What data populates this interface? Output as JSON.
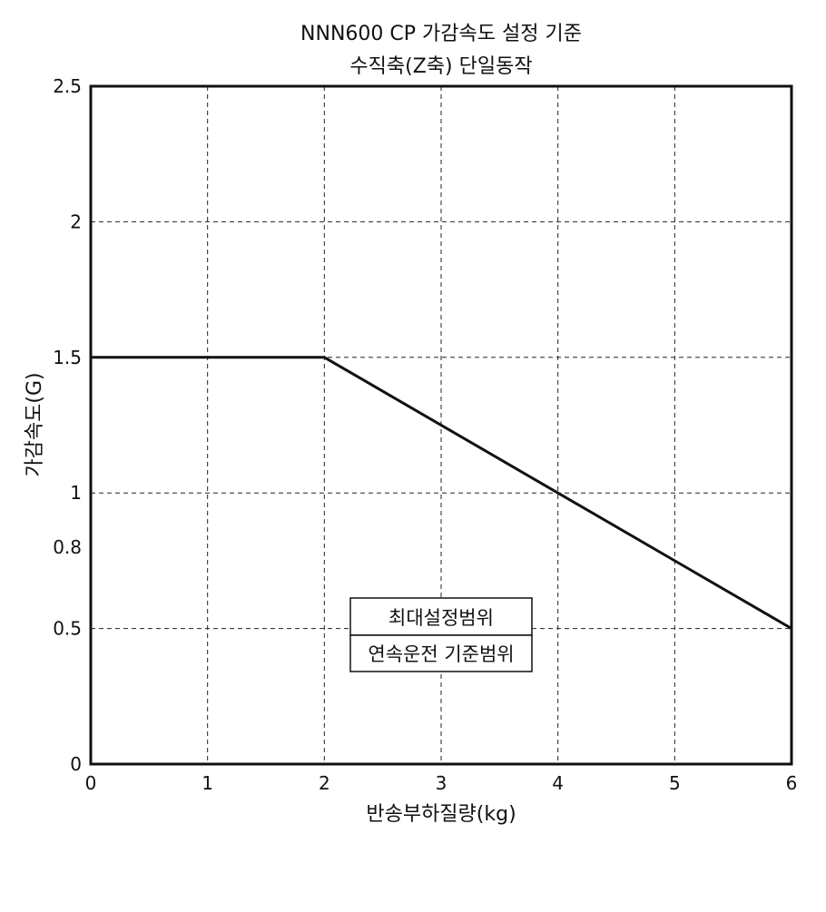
{
  "chart_data": {
    "type": "line",
    "title": "NNN600 CP 가감속도 설정 기준",
    "subtitle": "수직축(Z축) 단일동작",
    "xlabel": "반송부하질량(kg)",
    "ylabel": "가감속도(G)",
    "xlim": [
      0,
      6
    ],
    "ylim": [
      0,
      2.5
    ],
    "x_ticks": [
      0,
      1,
      2,
      3,
      4,
      5,
      6
    ],
    "y_ticks": [
      0,
      0.5,
      0.8,
      1,
      1.5,
      2,
      2.5
    ],
    "x_grid": [
      1,
      2,
      3,
      4,
      5
    ],
    "y_grid": [
      0.5,
      1,
      1.5,
      2
    ],
    "grid": true,
    "series": [
      {
        "x": [
          0,
          2,
          6
        ],
        "y": [
          1.5,
          1.5,
          0.5
        ]
      }
    ],
    "annotation": {
      "upper": "최대설정범위",
      "lower": "연속운전 기준범위"
    }
  }
}
